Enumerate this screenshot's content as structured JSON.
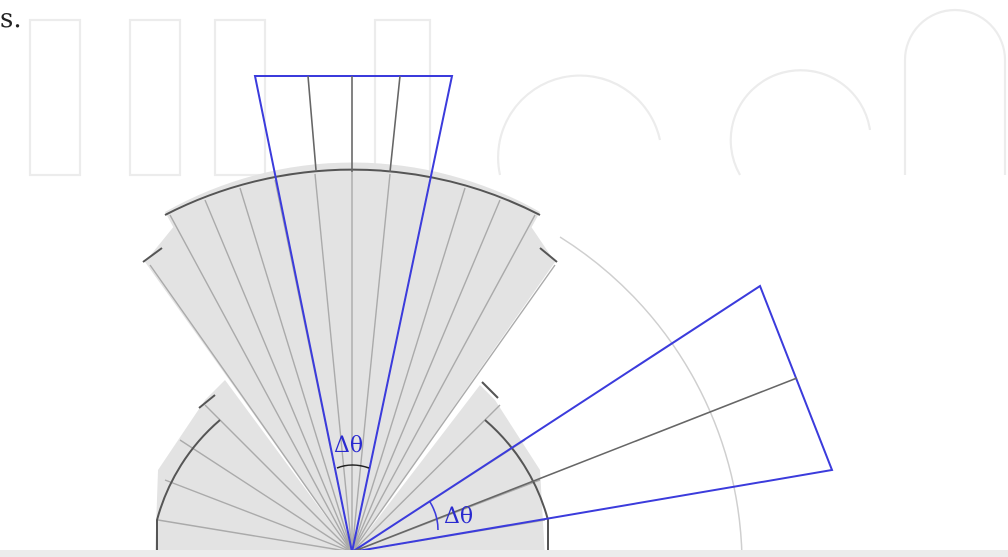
{
  "page": {
    "fragment_text": "s."
  },
  "labels": {
    "delta_theta_top": "Δθ",
    "delta_theta_right": "Δθ"
  },
  "colors": {
    "blue_outline": "#3b3bdc",
    "sector_fill": "#e3e3e3",
    "rim": "#555555",
    "fan_lines": "#aaaaaa",
    "watermark": "#ececec"
  }
}
